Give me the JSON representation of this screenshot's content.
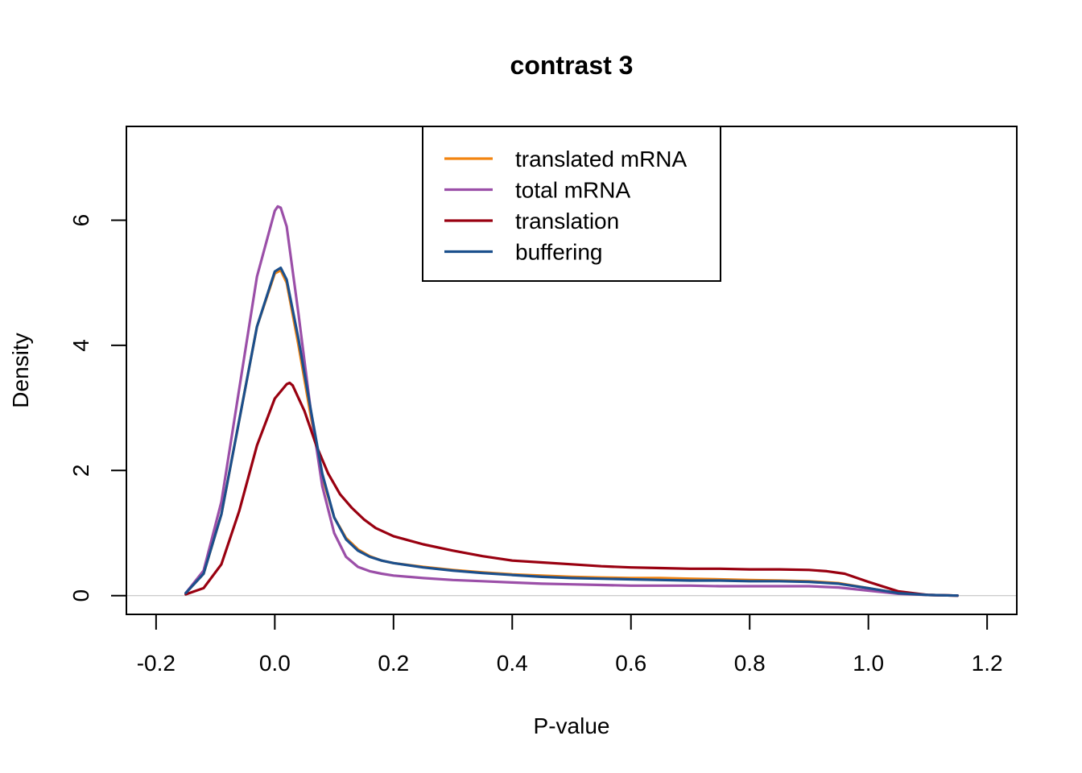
{
  "chart_data": {
    "type": "line",
    "title": "contrast 3",
    "xlabel": "P-value",
    "ylabel": "Density",
    "xlim": [
      -0.25,
      1.25
    ],
    "ylim": [
      -0.3,
      7.5
    ],
    "x_ticks": [
      "-0.2",
      "0.0",
      "0.2",
      "0.4",
      "0.6",
      "0.8",
      "1.0",
      "1.2"
    ],
    "y_ticks": [
      "0",
      "2",
      "4",
      "6"
    ],
    "grid": false,
    "baseline_y": 0,
    "legend_position": "top-center",
    "series": [
      {
        "name": "translated mRNA",
        "color": "#F28410",
        "x": [
          -0.15,
          -0.12,
          -0.09,
          -0.06,
          -0.03,
          0.0,
          0.01,
          0.02,
          0.04,
          0.06,
          0.08,
          0.1,
          0.12,
          0.14,
          0.16,
          0.18,
          0.2,
          0.25,
          0.3,
          0.35,
          0.4,
          0.45,
          0.5,
          0.55,
          0.6,
          0.65,
          0.7,
          0.75,
          0.8,
          0.85,
          0.9,
          0.95,
          1.0,
          1.05,
          1.1,
          1.15
        ],
        "y": [
          0.04,
          0.35,
          1.3,
          2.8,
          4.3,
          5.15,
          5.2,
          5.0,
          4.0,
          2.9,
          1.9,
          1.25,
          0.92,
          0.74,
          0.63,
          0.56,
          0.52,
          0.46,
          0.41,
          0.37,
          0.34,
          0.32,
          0.3,
          0.29,
          0.28,
          0.28,
          0.27,
          0.26,
          0.25,
          0.24,
          0.23,
          0.2,
          0.12,
          0.04,
          0.01,
          0.0
        ]
      },
      {
        "name": "total mRNA",
        "color": "#9B4FA8",
        "x": [
          -0.15,
          -0.12,
          -0.09,
          -0.06,
          -0.03,
          0.0,
          0.005,
          0.01,
          0.02,
          0.04,
          0.06,
          0.08,
          0.1,
          0.12,
          0.14,
          0.16,
          0.18,
          0.2,
          0.25,
          0.3,
          0.35,
          0.4,
          0.45,
          0.5,
          0.55,
          0.6,
          0.65,
          0.7,
          0.75,
          0.8,
          0.85,
          0.9,
          0.95,
          1.0,
          1.05,
          1.1,
          1.15
        ],
        "y": [
          0.04,
          0.4,
          1.5,
          3.3,
          5.1,
          6.15,
          6.22,
          6.2,
          5.9,
          4.5,
          3.0,
          1.75,
          1.0,
          0.62,
          0.46,
          0.39,
          0.35,
          0.32,
          0.28,
          0.25,
          0.23,
          0.21,
          0.19,
          0.18,
          0.17,
          0.16,
          0.16,
          0.16,
          0.15,
          0.15,
          0.15,
          0.15,
          0.13,
          0.08,
          0.03,
          0.01,
          0.0
        ]
      },
      {
        "name": "translation",
        "color": "#990010",
        "x": [
          -0.15,
          -0.12,
          -0.09,
          -0.06,
          -0.03,
          0.0,
          0.02,
          0.025,
          0.03,
          0.05,
          0.07,
          0.09,
          0.11,
          0.13,
          0.15,
          0.17,
          0.2,
          0.25,
          0.3,
          0.35,
          0.4,
          0.45,
          0.5,
          0.55,
          0.6,
          0.65,
          0.7,
          0.75,
          0.8,
          0.85,
          0.9,
          0.93,
          0.96,
          1.0,
          1.05,
          1.1,
          1.15
        ],
        "y": [
          0.02,
          0.12,
          0.5,
          1.35,
          2.4,
          3.15,
          3.38,
          3.4,
          3.36,
          2.95,
          2.4,
          1.95,
          1.62,
          1.4,
          1.22,
          1.08,
          0.95,
          0.82,
          0.72,
          0.63,
          0.56,
          0.53,
          0.5,
          0.47,
          0.45,
          0.44,
          0.43,
          0.43,
          0.42,
          0.42,
          0.41,
          0.39,
          0.35,
          0.22,
          0.07,
          0.01,
          0.0
        ]
      },
      {
        "name": "buffering",
        "color": "#1B4F8C",
        "x": [
          -0.15,
          -0.12,
          -0.09,
          -0.06,
          -0.03,
          0.0,
          0.01,
          0.02,
          0.04,
          0.06,
          0.08,
          0.1,
          0.12,
          0.14,
          0.16,
          0.18,
          0.2,
          0.25,
          0.3,
          0.35,
          0.4,
          0.45,
          0.5,
          0.55,
          0.6,
          0.65,
          0.7,
          0.75,
          0.8,
          0.85,
          0.9,
          0.95,
          1.0,
          1.05,
          1.1,
          1.15
        ],
        "y": [
          0.04,
          0.35,
          1.3,
          2.8,
          4.3,
          5.18,
          5.24,
          5.05,
          4.1,
          3.0,
          1.95,
          1.25,
          0.9,
          0.72,
          0.62,
          0.56,
          0.52,
          0.45,
          0.4,
          0.36,
          0.33,
          0.3,
          0.28,
          0.27,
          0.26,
          0.25,
          0.24,
          0.24,
          0.23,
          0.23,
          0.22,
          0.19,
          0.12,
          0.04,
          0.01,
          0.0
        ]
      }
    ]
  }
}
